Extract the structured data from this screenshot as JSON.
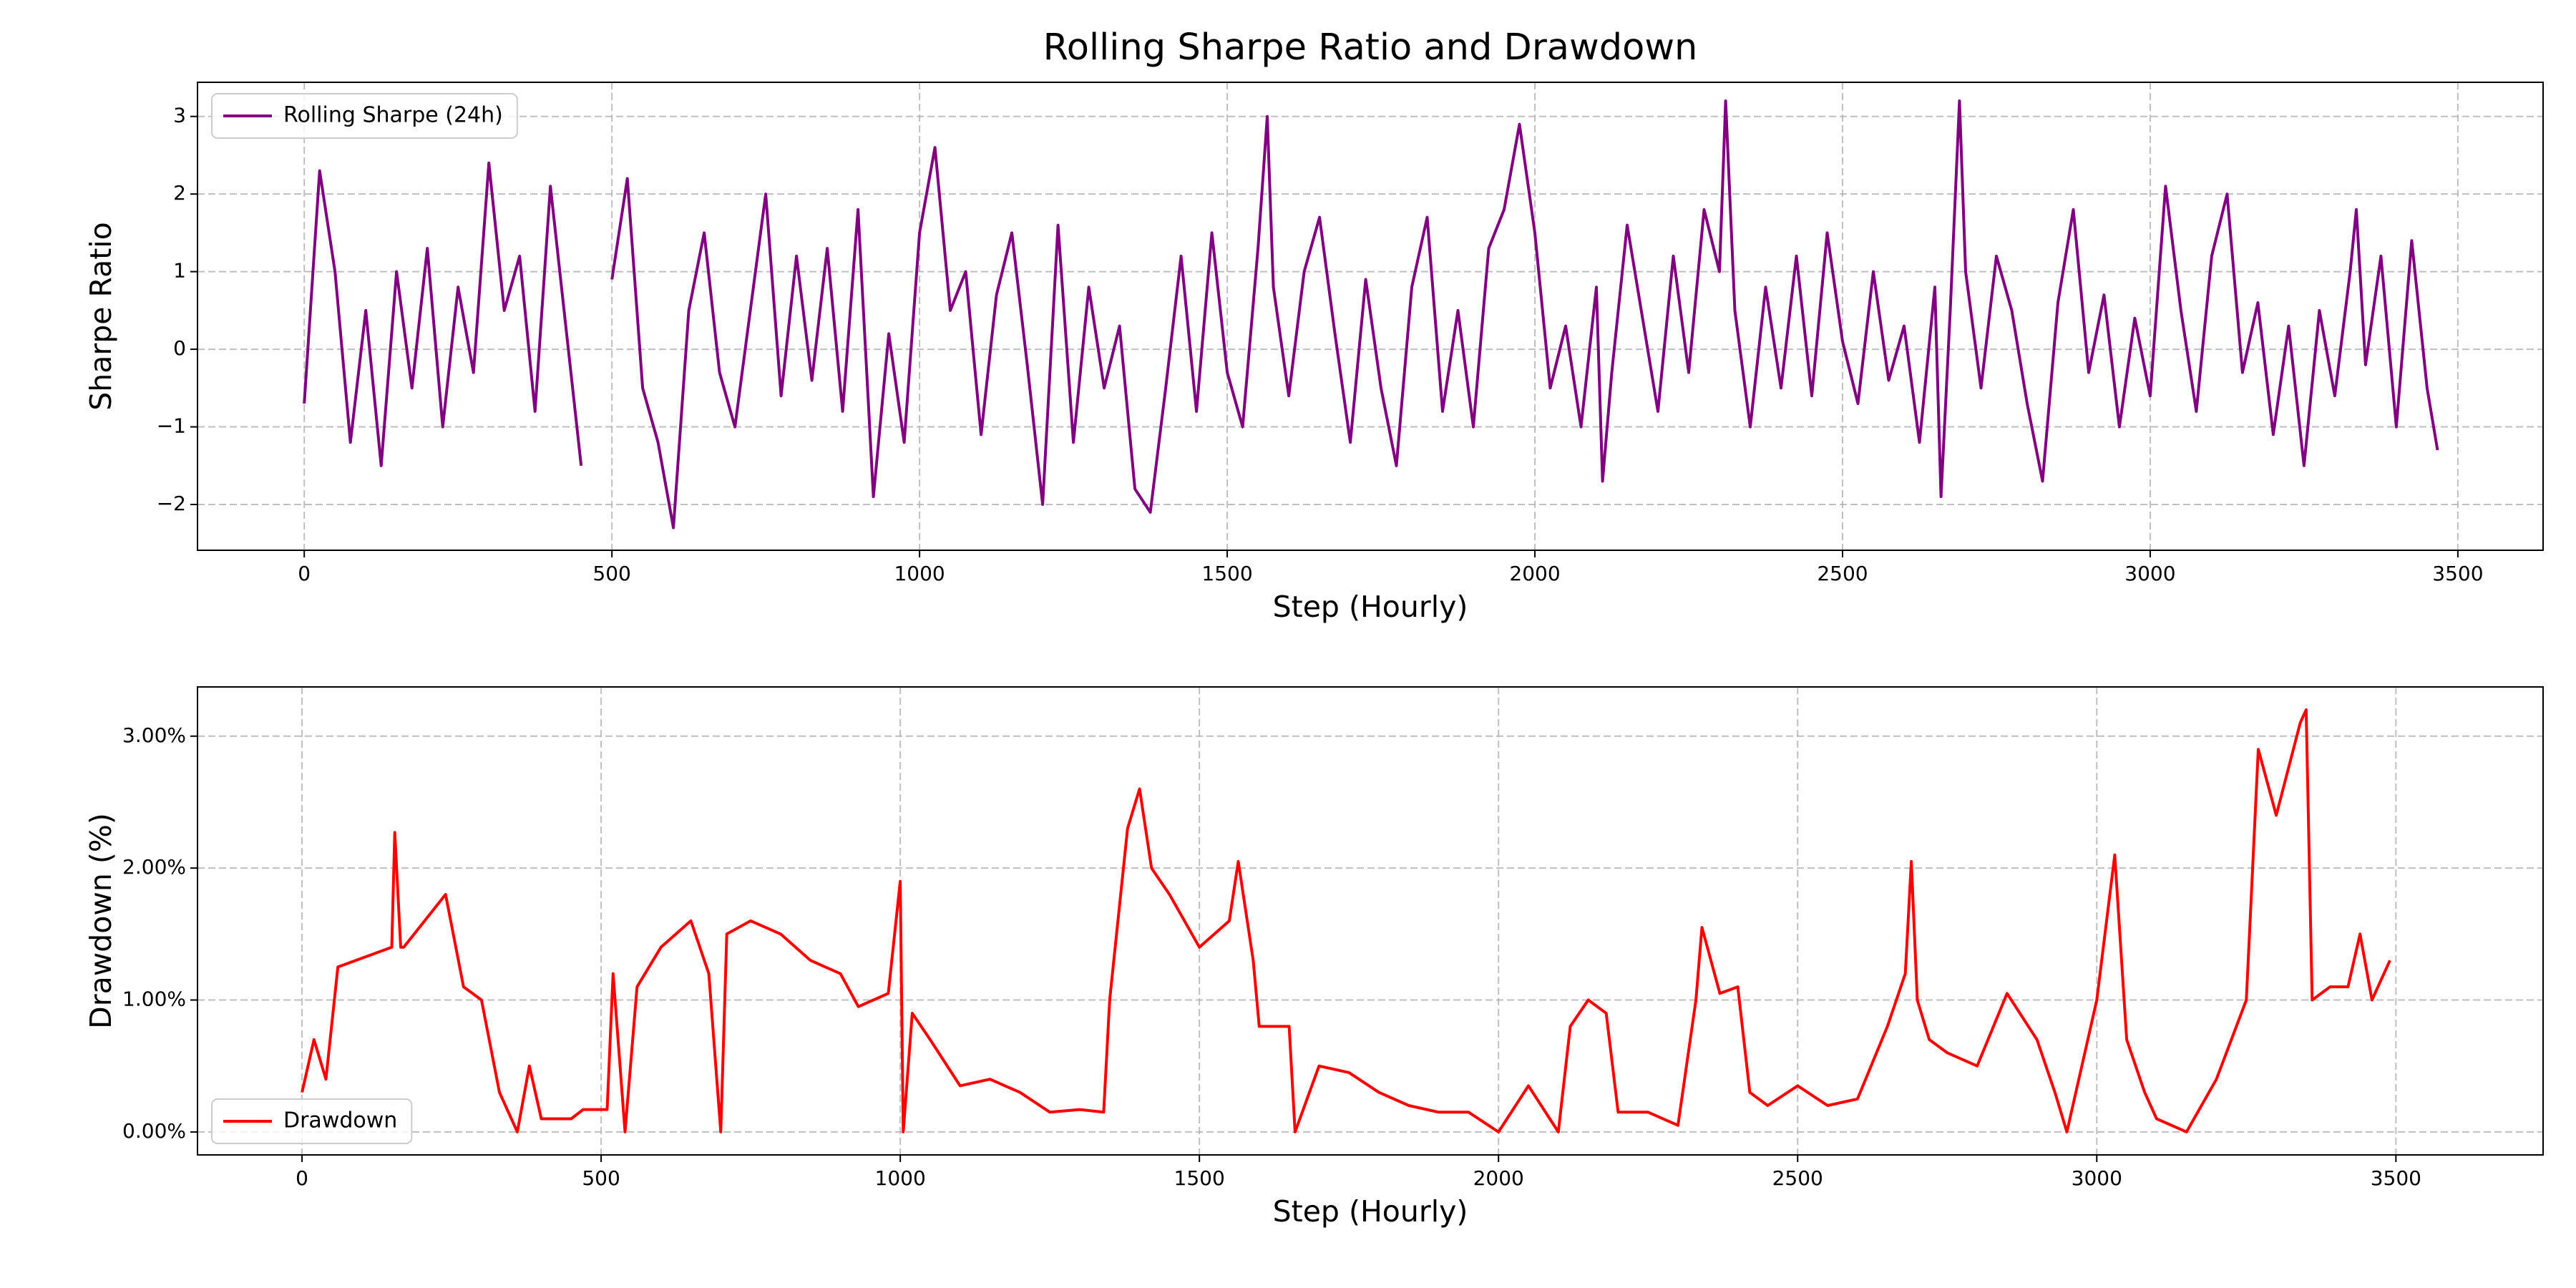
{
  "chart_data": [
    {
      "type": "line",
      "title": "Rolling Sharpe Ratio and Drawdown",
      "xlabel": "Step (Hourly)",
      "ylabel": "Sharpe Ratio",
      "legend": "upper left",
      "grid": true,
      "xlim": [
        -173.5,
        3638.5
      ],
      "ylim": [
        -2.59,
        3.44
      ],
      "xticks": [
        0,
        500,
        1000,
        1500,
        2000,
        2500,
        3000,
        3500
      ],
      "yticks": [
        {
          "value": -2,
          "label": "−2"
        },
        {
          "value": -1,
          "label": "−1"
        },
        0,
        1,
        2,
        3
      ],
      "x": [
        0,
        25,
        50,
        75,
        100,
        125,
        150,
        175,
        200,
        225,
        250,
        275,
        300,
        325,
        350,
        375,
        400,
        425,
        450,
        475,
        500,
        525,
        550,
        575,
        600,
        625,
        650,
        675,
        700,
        725,
        750,
        775,
        800,
        825,
        850,
        875,
        900,
        925,
        950,
        975,
        1000,
        1025,
        1050,
        1075,
        1100,
        1125,
        1150,
        1175,
        1200,
        1225,
        1250,
        1275,
        1300,
        1325,
        1350,
        1375,
        1400,
        1425,
        1450,
        1475,
        1500,
        1525,
        1550,
        1565,
        1575,
        1600,
        1625,
        1650,
        1675,
        1700,
        1725,
        1750,
        1775,
        1800,
        1825,
        1850,
        1875,
        1900,
        1925,
        1950,
        1975,
        2000,
        2025,
        2050,
        2075,
        2100,
        2110,
        2125,
        2150,
        2175,
        2200,
        2225,
        2250,
        2275,
        2300,
        2310,
        2325,
        2350,
        2375,
        2400,
        2425,
        2450,
        2475,
        2500,
        2525,
        2550,
        2575,
        2600,
        2625,
        2650,
        2660,
        2675,
        2690,
        2700,
        2725,
        2750,
        2775,
        2800,
        2825,
        2850,
        2875,
        2900,
        2925,
        2950,
        2975,
        3000,
        3025,
        3050,
        3075,
        3100,
        3125,
        3150,
        3175,
        3200,
        3225,
        3250,
        3275,
        3300,
        3325,
        3335,
        3350,
        3375,
        3400,
        3425,
        3450,
        3467
      ],
      "series": [
        {
          "name": "Rolling Sharpe (24h)",
          "color": "#800080",
          "values": [
            -0.7,
            2.3,
            1.0,
            -1.2,
            0.5,
            -1.5,
            1.0,
            -0.5,
            1.3,
            -1.0,
            0.8,
            -0.3,
            2.4,
            0.5,
            1.2,
            -0.8,
            2.1,
            0.3,
            -1.5,
            null,
            0.9,
            2.2,
            -0.5,
            -1.2,
            -2.3,
            0.5,
            1.5,
            -0.3,
            -1.0,
            0.5,
            2.0,
            -0.6,
            1.2,
            -0.4,
            1.3,
            -0.8,
            1.8,
            -1.9,
            0.2,
            -1.2,
            1.5,
            2.6,
            0.5,
            1.0,
            -1.1,
            0.7,
            1.5,
            -0.2,
            -2.0,
            1.6,
            -1.2,
            0.8,
            -0.5,
            0.3,
            -1.8,
            -2.1,
            -0.5,
            1.2,
            -0.8,
            1.5,
            -0.3,
            -1.0,
            1.3,
            3.0,
            0.8,
            -0.6,
            1.0,
            1.7,
            0.2,
            -1.2,
            0.9,
            -0.5,
            -1.5,
            0.8,
            1.7,
            -0.8,
            0.5,
            -1.0,
            1.3,
            1.8,
            2.9,
            1.5,
            -0.5,
            0.3,
            -1.0,
            0.8,
            -1.7,
            -0.3,
            1.6,
            0.4,
            -0.8,
            1.2,
            -0.3,
            1.8,
            1.0,
            3.2,
            0.5,
            -1.0,
            0.8,
            -0.5,
            1.2,
            -0.6,
            1.5,
            0.1,
            -0.7,
            1.0,
            -0.4,
            0.3,
            -1.2,
            0.8,
            -1.9,
            0.5,
            3.2,
            1.0,
            -0.5,
            1.2,
            0.5,
            -0.7,
            -1.7,
            0.6,
            1.8,
            -0.3,
            0.7,
            -1.0,
            0.4,
            -0.6,
            2.1,
            0.5,
            -0.8,
            1.2,
            2.0,
            -0.3,
            0.6,
            -1.1,
            0.3,
            -1.5,
            0.5,
            -0.6,
            1.0,
            1.8,
            -0.2,
            1.2,
            -1.0,
            1.4,
            -0.5,
            -1.3
          ]
        }
      ]
    },
    {
      "type": "line",
      "xlabel": "Step (Hourly)",
      "ylabel": "Drawdown (%)",
      "legend": "lower left",
      "grid": true,
      "xlim": [
        -174.7,
        3746
      ],
      "ylim": [
        -0.174,
        3.373
      ],
      "xticks": [
        0,
        500,
        1000,
        1500,
        2000,
        2500,
        3000,
        3500
      ],
      "yticks": [
        {
          "value": 0,
          "label": "0.00%"
        },
        {
          "value": 1,
          "label": "1.00%"
        },
        {
          "value": 2,
          "label": "2.00%"
        },
        {
          "value": 3,
          "label": "3.00%"
        }
      ],
      "x": [
        0,
        20,
        40,
        60,
        150,
        155,
        165,
        170,
        240,
        270,
        300,
        330,
        360,
        380,
        400,
        450,
        470,
        510,
        520,
        540,
        560,
        600,
        650,
        680,
        700,
        710,
        750,
        800,
        850,
        900,
        930,
        980,
        1000,
        1005,
        1020,
        1050,
        1100,
        1150,
        1200,
        1250,
        1300,
        1340,
        1350,
        1380,
        1400,
        1420,
        1450,
        1500,
        1550,
        1565,
        1590,
        1600,
        1650,
        1660,
        1700,
        1750,
        1800,
        1850,
        1900,
        1950,
        2000,
        2050,
        2100,
        2120,
        2150,
        2180,
        2200,
        2250,
        2300,
        2330,
        2340,
        2370,
        2400,
        2420,
        2450,
        2500,
        2550,
        2600,
        2650,
        2680,
        2690,
        2700,
        2720,
        2750,
        2800,
        2850,
        2900,
        2930,
        2950,
        2980,
        3000,
        3030,
        3050,
        3080,
        3100,
        3150,
        3200,
        3250,
        3270,
        3300,
        3340,
        3350,
        3360,
        3390,
        3420,
        3440,
        3460,
        3490
      ],
      "series": [
        {
          "name": "Drawdown",
          "color": "#ff0000",
          "values": [
            0.3,
            0.7,
            0.4,
            1.25,
            1.4,
            2.27,
            1.4,
            1.4,
            1.8,
            1.1,
            1.0,
            0.3,
            0.0,
            0.5,
            0.1,
            0.1,
            0.17,
            0.17,
            1.2,
            0.0,
            1.1,
            1.4,
            1.6,
            1.2,
            0.0,
            1.5,
            1.6,
            1.5,
            1.3,
            1.2,
            0.95,
            1.05,
            1.9,
            0.0,
            0.9,
            0.7,
            0.35,
            0.4,
            0.3,
            0.15,
            0.17,
            0.15,
            1.0,
            2.3,
            2.6,
            2.0,
            1.8,
            1.4,
            1.6,
            2.05,
            1.3,
            0.8,
            0.8,
            0.0,
            0.5,
            0.45,
            0.3,
            0.2,
            0.15,
            0.15,
            0.0,
            0.35,
            0.0,
            0.8,
            1.0,
            0.9,
            0.15,
            0.15,
            0.05,
            1.0,
            1.55,
            1.05,
            1.1,
            0.3,
            0.2,
            0.35,
            0.2,
            0.25,
            0.8,
            1.2,
            2.05,
            1.0,
            0.7,
            0.6,
            0.5,
            1.05,
            0.7,
            0.3,
            0.0,
            0.6,
            1.0,
            2.1,
            0.7,
            0.3,
            0.1,
            0.0,
            0.4,
            1.0,
            2.9,
            2.4,
            3.1,
            3.2,
            1.0,
            1.1,
            1.1,
            1.5,
            1.0,
            1.3
          ]
        }
      ]
    }
  ]
}
